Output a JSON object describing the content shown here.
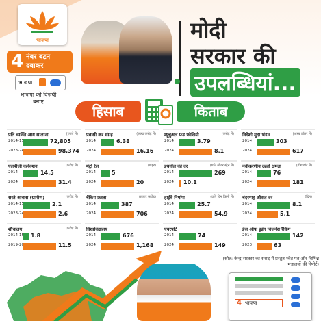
{
  "brand": {
    "logo_label": "भाजपा",
    "colors": {
      "saffron": "#f07a1a",
      "deep_orange": "#e8561e",
      "green": "#2f9e45"
    }
  },
  "vote_appeal": {
    "number": "4",
    "text_line1": "नंबर बटन",
    "text_line2": "दबाकर",
    "evm_party": "भाजपा",
    "win_text": "भाजपा को विजयी बनाएं"
  },
  "headline": {
    "line1": "मोदी",
    "line2": "सरकार की",
    "line3": "उपलब्धियां..."
  },
  "ledger": {
    "left": "हिसाब",
    "right": "किताब",
    "icon": "calculator-icon"
  },
  "source_note": "(स्रोत: केन्द्र सरकार का संसद में प्रस्तुत श्वेत पत्र और विभिन्न मंत्रालयों की रिपोर्ट)",
  "stats": [
    {
      "title": "प्रति व्यक्ति आय सालाना",
      "unit": "(रुपये में)",
      "rows": [
        {
          "year": "2014-15",
          "value": "72,805",
          "frac": 0.74
        },
        {
          "year": "2023-24",
          "value": "98,374",
          "frac": 1.0
        }
      ]
    },
    {
      "title": "प्रवासी कर संग्रह",
      "unit": "(लाख करोड़ में)",
      "rows": [
        {
          "year": "2014",
          "value": "6.38",
          "frac": 0.39
        },
        {
          "year": "2024",
          "value": "16.16",
          "frac": 1.0
        }
      ]
    },
    {
      "title": "म्यूचुअल फंड फोलियो",
      "unit": "(करोड़ में)",
      "rows": [
        {
          "year": "2014",
          "value": "3.79",
          "frac": 0.47
        },
        {
          "year": "2024",
          "value": "8.1",
          "frac": 1.0
        }
      ]
    },
    {
      "title": "विदेशी मुद्रा भंडार",
      "unit": "(अरब डॉलर में)",
      "rows": [
        {
          "year": "2014",
          "value": "303",
          "frac": 0.49
        },
        {
          "year": "2024",
          "value": "617",
          "frac": 1.0
        }
      ]
    },
    {
      "title": "एलपीजी कनेक्शन",
      "unit": "(करोड़ में)",
      "rows": [
        {
          "year": "2014",
          "value": "14.5",
          "frac": 0.46
        },
        {
          "year": "2024",
          "value": "31.4",
          "frac": 1.0
        }
      ]
    },
    {
      "title": "मेट्रो रेल",
      "unit": "(शहर)",
      "rows": [
        {
          "year": "2014",
          "value": "5",
          "frac": 0.25
        },
        {
          "year": "2024",
          "value": "20",
          "frac": 1.0
        }
      ]
    },
    {
      "title": "इथनॉल की दर",
      "unit": "(प्रति लीटर स्ट्रेन में)",
      "rows": [
        {
          "year": "2014",
          "value": "269",
          "frac": 1.0
        },
        {
          "year": "2024",
          "value": "10.1",
          "frac": 0.04
        }
      ]
    },
    {
      "title": "नवीकरणीय ऊर्जा क्षमता",
      "unit": "(गीगावॉट में)",
      "rows": [
        {
          "year": "2014",
          "value": "76",
          "frac": 0.42
        },
        {
          "year": "2024",
          "value": "181",
          "frac": 1.0
        }
      ]
    },
    {
      "title": "सस्ते आवास (ग्रामीण)",
      "unit": "(करोड़ में)",
      "rows": [
        {
          "year": "2014-15",
          "value": "2.1",
          "frac": 0.81
        },
        {
          "year": "2023-24",
          "value": "2.6",
          "frac": 1.0
        }
      ]
    },
    {
      "title": "बैंकिंग फ्रस्ता",
      "unit": "(हज़ार करोड़)",
      "rows": [
        {
          "year": "2014",
          "value": "387",
          "frac": 0.55
        },
        {
          "year": "2024",
          "value": "706",
          "frac": 1.0
        }
      ]
    },
    {
      "title": "हाईवे निर्माण",
      "unit": "(प्रति दिन किमी में)",
      "rows": [
        {
          "year": "2014",
          "value": "25.7",
          "frac": 0.47
        },
        {
          "year": "2024",
          "value": "54.9",
          "frac": 1.0
        }
      ]
    },
    {
      "title": "बंदरगाह औसत दर",
      "unit": "(दिन)",
      "rows": [
        {
          "year": "2014",
          "value": "8.1",
          "frac": 1.0
        },
        {
          "year": "2024",
          "value": "5.1",
          "frac": 0.63
        }
      ]
    },
    {
      "title": "शौचालय",
      "unit": "(करोड़ में)",
      "rows": [
        {
          "year": "2014-15",
          "value": "1.8",
          "frac": 0.16
        },
        {
          "year": "2019-20",
          "value": "11.5",
          "frac": 1.0
        }
      ]
    },
    {
      "title": "विश्वविद्यालय",
      "unit": "",
      "rows": [
        {
          "year": "2014",
          "value": "676",
          "frac": 0.58
        },
        {
          "year": "2024",
          "value": "1,168",
          "frac": 1.0
        }
      ]
    },
    {
      "title": "एयरपोर्ट",
      "unit": "",
      "rows": [
        {
          "year": "2014",
          "value": "74",
          "frac": 0.5
        },
        {
          "year": "2024",
          "value": "149",
          "frac": 1.0
        }
      ]
    },
    {
      "title": "ईज़ ऑफ डूइंग बिजनेस रैंकिंग",
      "unit": "",
      "rows": [
        {
          "year": "2014",
          "value": "142",
          "frac": 1.0
        },
        {
          "year": "2023",
          "value": "63",
          "frac": 0.44
        }
      ]
    }
  ]
}
